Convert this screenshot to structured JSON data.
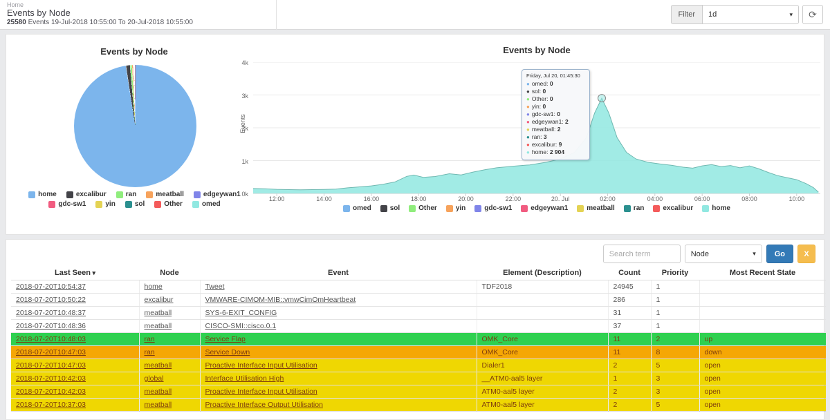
{
  "header": {
    "breadcrumb": "Home",
    "title": "Events by Node",
    "count": "25580",
    "range_text": "Events 19-Jul-2018 10:55:00 To 20-Jul-2018 10:55:00",
    "filter": {
      "label": "Filter",
      "value": "1d",
      "refresh_icon": "refresh-icon"
    }
  },
  "pie": {
    "title": "Events by Node",
    "legend": [
      {
        "label": "home",
        "color": "#7cb5ec"
      },
      {
        "label": "excalibur",
        "color": "#434348"
      },
      {
        "label": "ran",
        "color": "#90ed7d"
      },
      {
        "label": "meatball",
        "color": "#f7a35c"
      },
      {
        "label": "edgeywan1",
        "color": "#8085e9"
      },
      {
        "label": "gdc-sw1",
        "color": "#f15c80"
      },
      {
        "label": "yin",
        "color": "#e4d354"
      },
      {
        "label": "sol",
        "color": "#2b908f"
      },
      {
        "label": "Other",
        "color": "#f45b5b"
      },
      {
        "label": "omed",
        "color": "#91e8e1"
      }
    ]
  },
  "area": {
    "title": "Events by Node",
    "ylabel": "Events",
    "yticks": [
      "4k",
      "3k",
      "2k",
      "1k",
      "0k"
    ],
    "xticks": [
      "12:00",
      "14:00",
      "16:00",
      "18:00",
      "20:00",
      "22:00",
      "20. Jul",
      "02:00",
      "04:00",
      "06:00",
      "08:00",
      "10:00"
    ],
    "legend": [
      {
        "label": "omed",
        "color": "#7cb5ec"
      },
      {
        "label": "sol",
        "color": "#434348"
      },
      {
        "label": "Other",
        "color": "#90ed7d"
      },
      {
        "label": "yin",
        "color": "#f7a35c"
      },
      {
        "label": "gdc-sw1",
        "color": "#8085e9"
      },
      {
        "label": "edgeywan1",
        "color": "#f15c80"
      },
      {
        "label": "meatball",
        "color": "#e4d354"
      },
      {
        "label": "ran",
        "color": "#2b908f"
      },
      {
        "label": "excalibur",
        "color": "#f45b5b"
      },
      {
        "label": "home",
        "color": "#91e8e1"
      }
    ],
    "tooltip": {
      "title": "Friday, Jul 20, 01:45:30",
      "rows": [
        {
          "label": "omed",
          "value": "0",
          "color": "#7cb5ec"
        },
        {
          "label": "sol",
          "value": "0",
          "color": "#434348"
        },
        {
          "label": "Other",
          "value": "0",
          "color": "#90ed7d"
        },
        {
          "label": "yin",
          "value": "0",
          "color": "#f7a35c"
        },
        {
          "label": "gdc-sw1",
          "value": "0",
          "color": "#8085e9"
        },
        {
          "label": "edgeywan1",
          "value": "2",
          "color": "#f15c80"
        },
        {
          "label": "meatball",
          "value": "2",
          "color": "#e4d354"
        },
        {
          "label": "ran",
          "value": "3",
          "color": "#2b908f"
        },
        {
          "label": "excalibur",
          "value": "9",
          "color": "#f45b5b"
        },
        {
          "label": "home",
          "value": "2 904",
          "color": "#91e8e1"
        }
      ]
    }
  },
  "chart_data": [
    {
      "type": "pie",
      "title": "Events by Node",
      "legend_position": "bottom",
      "slices": [
        {
          "name": "home",
          "pct": 97.5
        },
        {
          "name": "excalibur",
          "pct": 1.1
        },
        {
          "name": "ran",
          "pct": 0.5
        },
        {
          "name": "meatball",
          "pct": 0.3
        },
        {
          "name": "edgeywan1",
          "pct": 0.1
        },
        {
          "name": "gdc-sw1",
          "pct": 0.1
        },
        {
          "name": "yin",
          "pct": 0.1
        },
        {
          "name": "sol",
          "pct": 0.1
        },
        {
          "name": "Other",
          "pct": 0.2
        },
        {
          "name": "omed",
          "pct": 0.0
        }
      ]
    },
    {
      "type": "area",
      "title": "Events by Node",
      "xlabel": "",
      "ylabel": "Events",
      "ylim": [
        0,
        4000
      ],
      "grid": true,
      "legend_position": "bottom",
      "x_unit": "hours since 19-Jul-2018 11:00",
      "x_tick_labels": [
        "12:00",
        "14:00",
        "16:00",
        "18:00",
        "20:00",
        "22:00",
        "20. Jul",
        "02:00",
        "04:00",
        "06:00",
        "08:00",
        "10:00"
      ],
      "x_tick_hours": [
        1,
        3,
        5,
        7,
        9,
        11,
        13,
        15,
        17,
        19,
        21,
        23
      ],
      "series": [
        {
          "name": "home",
          "points": [
            [
              0,
              150
            ],
            [
              0.5,
              140
            ],
            [
              1,
              125
            ],
            [
              1.5,
              115
            ],
            [
              2,
              110
            ],
            [
              2.5,
              115
            ],
            [
              3,
              120
            ],
            [
              3.5,
              130
            ],
            [
              4,
              170
            ],
            [
              4.5,
              200
            ],
            [
              5,
              230
            ],
            [
              5.5,
              280
            ],
            [
              6,
              350
            ],
            [
              6.5,
              520
            ],
            [
              6.8,
              560
            ],
            [
              7.2,
              490
            ],
            [
              7.7,
              515
            ],
            [
              8.3,
              600
            ],
            [
              8.8,
              565
            ],
            [
              9.3,
              650
            ],
            [
              9.8,
              720
            ],
            [
              10.3,
              780
            ],
            [
              11,
              830
            ],
            [
              11.7,
              870
            ],
            [
              12.4,
              950
            ],
            [
              13,
              1050
            ],
            [
              13.6,
              1250
            ],
            [
              14.1,
              1700
            ],
            [
              14.45,
              2450
            ],
            [
              14.75,
              2904
            ],
            [
              15.05,
              2450
            ],
            [
              15.4,
              1700
            ],
            [
              15.8,
              1250
            ],
            [
              16.2,
              1050
            ],
            [
              16.7,
              950
            ],
            [
              17.2,
              900
            ],
            [
              17.7,
              860
            ],
            [
              18.2,
              800
            ],
            [
              18.6,
              770
            ],
            [
              19,
              840
            ],
            [
              19.4,
              880
            ],
            [
              19.8,
              820
            ],
            [
              20.2,
              850
            ],
            [
              20.6,
              780
            ],
            [
              21,
              840
            ],
            [
              21.4,
              750
            ],
            [
              21.8,
              640
            ],
            [
              22.2,
              540
            ],
            [
              22.6,
              480
            ],
            [
              23,
              420
            ],
            [
              23.4,
              300
            ],
            [
              23.7,
              180
            ],
            [
              23.92,
              40
            ]
          ]
        },
        {
          "name": "excalibur",
          "points": [
            [
              14.75,
              9
            ]
          ]
        },
        {
          "name": "ran",
          "points": [
            [
              14.75,
              3
            ]
          ]
        },
        {
          "name": "edgeywan1",
          "points": [
            [
              14.75,
              2
            ]
          ]
        },
        {
          "name": "meatball",
          "points": [
            [
              14.75,
              2
            ]
          ]
        },
        {
          "name": "omed",
          "points": [
            [
              14.75,
              0
            ]
          ]
        },
        {
          "name": "sol",
          "points": [
            [
              14.75,
              0
            ]
          ]
        },
        {
          "name": "Other",
          "points": [
            [
              14.75,
              0
            ]
          ]
        },
        {
          "name": "yin",
          "points": [
            [
              14.75,
              0
            ]
          ]
        },
        {
          "name": "gdc-sw1",
          "points": [
            [
              14.75,
              0
            ]
          ]
        }
      ],
      "marker_point": {
        "t": 14.75,
        "value": 2904,
        "series": "home"
      }
    }
  ],
  "table": {
    "search_placeholder": "Search term",
    "filter_value": "Node",
    "go_label": "Go",
    "clear_label": "X",
    "sort_caret": "▾",
    "columns": [
      "Last Seen",
      "Node",
      "Event",
      "Element (Description)",
      "Count",
      "Priority",
      "Most Recent State"
    ],
    "rows": [
      {
        "last_seen": "2018-07-20T10:54:37",
        "node": "home",
        "event": "Tweet",
        "element": "TDF2018",
        "count": "24945",
        "priority": "1",
        "state": "",
        "severity": "none"
      },
      {
        "last_seen": "2018-07-20T10:50:22",
        "node": "excalibur",
        "event": "VMWARE-CIMOM-MIB::vmwCimOmHeartbeat",
        "element": "",
        "count": "286",
        "priority": "1",
        "state": "",
        "severity": "none"
      },
      {
        "last_seen": "2018-07-20T10:48:37",
        "node": "meatball",
        "event": "SYS-6-EXIT_CONFIG",
        "element": "",
        "count": "31",
        "priority": "1",
        "state": "",
        "severity": "none"
      },
      {
        "last_seen": "2018-07-20T10:48:36",
        "node": "meatball",
        "event": "CISCO-SMI::cisco.0.1",
        "element": "",
        "count": "37",
        "priority": "1",
        "state": "",
        "severity": "none"
      },
      {
        "last_seen": "2018-07-20T10:48:03",
        "node": "ran",
        "event": "Service Flap",
        "element": "OMK_Core",
        "count": "11",
        "priority": "2",
        "state": "up",
        "severity": "green"
      },
      {
        "last_seen": "2018-07-20T10:47:03",
        "node": "ran",
        "event": "Service Down",
        "element": "OMK_Core",
        "count": "11",
        "priority": "8",
        "state": "down",
        "severity": "orange"
      },
      {
        "last_seen": "2018-07-20T10:47:03",
        "node": "meatball",
        "event": "Proactive Interface Input Utilisation",
        "element": "Dialer1",
        "count": "2",
        "priority": "5",
        "state": "open",
        "severity": "yellow"
      },
      {
        "last_seen": "2018-07-20T10:42:03",
        "node": "global",
        "event": "Interface Utilisation High",
        "element": "__ATM0-aal5 layer",
        "count": "1",
        "priority": "3",
        "state": "open",
        "severity": "yellow"
      },
      {
        "last_seen": "2018-07-20T10:42:03",
        "node": "meatball",
        "event": "Proactive Interface Input Utilisation",
        "element": "ATM0-aal5 layer",
        "count": "2",
        "priority": "3",
        "state": "open",
        "severity": "yellow"
      },
      {
        "last_seen": "2018-07-20T10:37:03",
        "node": "meatball",
        "event": "Proactive Interface Output Utilisation",
        "element": "ATM0-aal5 layer",
        "count": "2",
        "priority": "5",
        "state": "open",
        "severity": "yellow"
      }
    ]
  }
}
